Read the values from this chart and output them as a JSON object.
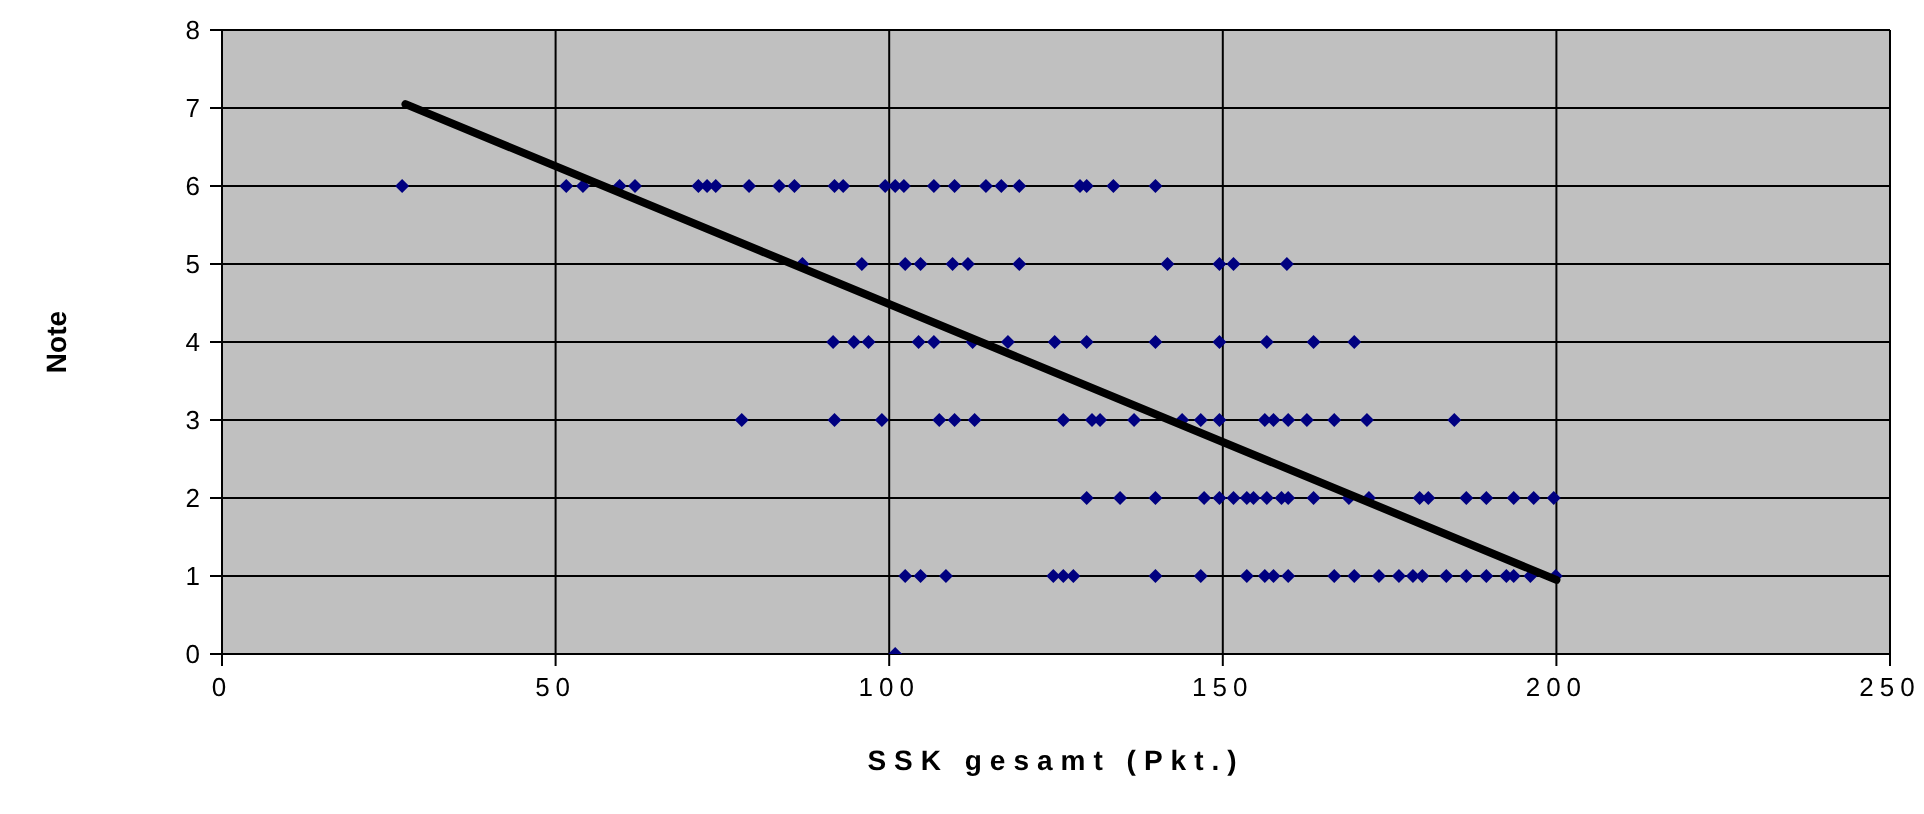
{
  "chart_data": {
    "type": "scatter",
    "xlabel": "SSK gesamt (Pkt.)",
    "ylabel": "Note",
    "xlim": [
      0,
      250
    ],
    "xticks": [
      0,
      50,
      100,
      150,
      200,
      250
    ],
    "ylim": [
      0,
      8
    ],
    "yticks": [
      0,
      1,
      2,
      3,
      4,
      5,
      6,
      7,
      8
    ],
    "grid": true,
    "legend": false,
    "series": [
      {
        "color": "#000080",
        "marker": "diamond",
        "x": [
          27,
          51.6,
          54.1,
          59.6,
          61.9,
          71.4,
          72.7,
          74,
          79,
          83.5,
          85.8,
          91.8,
          93.1,
          99.4,
          100.9,
          102.2,
          106.7,
          109.8,
          114.5,
          116.8,
          119.5,
          128.6,
          129.6,
          133.6,
          139.9,
          87,
          95.9,
          102.4,
          104.7,
          109.5,
          111.8,
          119.5,
          141.7,
          149.5,
          151.6,
          159.6,
          91.6,
          94.7,
          96.9,
          104.4,
          106.7,
          112.5,
          117.8,
          124.8,
          129.6,
          139.9,
          149.5,
          156.6,
          163.6,
          169.7,
          77.9,
          91.8,
          98.9,
          107.5,
          109.8,
          112.8,
          126.1,
          130.4,
          131.6,
          136.7,
          143.9,
          146.7,
          149.5,
          156.3,
          157.6,
          159.8,
          162.6,
          166.7,
          171.6,
          184.7,
          129.6,
          134.6,
          139.9,
          147.2,
          149.5,
          151.6,
          153.6,
          154.6,
          156.6,
          158.8,
          159.8,
          163.6,
          168.9,
          171.9,
          179.5,
          180.8,
          186.5,
          189.5,
          193.6,
          196.6,
          199.6,
          102.4,
          104.7,
          108.5,
          124.6,
          126.1,
          127.6,
          139.9,
          146.7,
          153.6,
          156.3,
          157.6,
          159.8,
          166.7,
          169.7,
          173.4,
          176.4,
          178.5,
          179.9,
          183.5,
          186.5,
          189.5,
          192.5,
          193.6,
          196.1,
          199.9,
          100.9
        ],
        "values": [
          6,
          6,
          6,
          6,
          6,
          6,
          6,
          6,
          6,
          6,
          6,
          6,
          6,
          6,
          6,
          6,
          6,
          6,
          6,
          6,
          6,
          6,
          6,
          6,
          6,
          5,
          5,
          5,
          5,
          5,
          5,
          5,
          5,
          5,
          5,
          5,
          4,
          4,
          4,
          4,
          4,
          4,
          4,
          4,
          4,
          4,
          4,
          4,
          4,
          4,
          3,
          3,
          3,
          3,
          3,
          3,
          3,
          3,
          3,
          3,
          3,
          3,
          3,
          3,
          3,
          3,
          3,
          3,
          3,
          3,
          2,
          2,
          2,
          2,
          2,
          2,
          2,
          2,
          2,
          2,
          2,
          2,
          2,
          2,
          2,
          2,
          2,
          2,
          2,
          2,
          2,
          1,
          1,
          1,
          1,
          1,
          1,
          1,
          1,
          1,
          1,
          1,
          1,
          1,
          1,
          1,
          1,
          1,
          1,
          1,
          1,
          1,
          1,
          1,
          1,
          1,
          0
        ]
      },
      {
        "type": "line",
        "color": "#000000",
        "marker": "none",
        "x": [
          27.5,
          200
        ],
        "values": [
          7.05,
          0.95
        ]
      }
    ]
  }
}
